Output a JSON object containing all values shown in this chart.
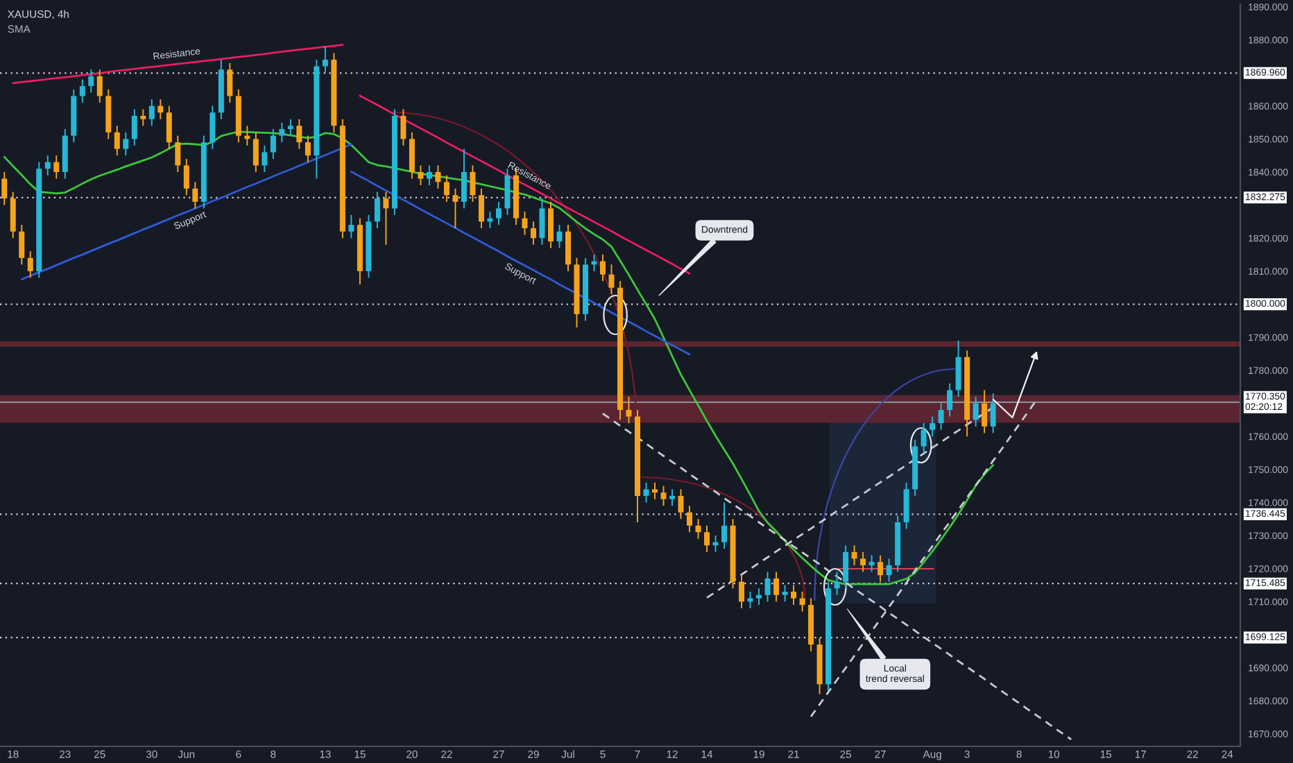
{
  "chart_data": {
    "type": "candlestick",
    "title": "XAUUSD, 4h",
    "subtitle": "SMA",
    "ylim": [
      1666.2,
      1890.8
    ],
    "categories": [
      null,
      "18",
      null,
      null,
      null,
      null,
      null,
      "23",
      null,
      null,
      null,
      "25",
      null,
      null,
      null,
      null,
      null,
      "30",
      null,
      null,
      null,
      "Jun",
      null,
      null,
      null,
      null,
      null,
      "6",
      null,
      null,
      null,
      "8",
      null,
      null,
      null,
      null,
      null,
      "13",
      null,
      null,
      null,
      "15",
      null,
      null,
      null,
      null,
      null,
      "20",
      null,
      null,
      null,
      "22",
      null,
      null,
      null,
      null,
      null,
      "27",
      null,
      null,
      null,
      "29",
      null,
      null,
      null,
      "Jul",
      null,
      null,
      null,
      "5",
      null,
      null,
      null,
      "7",
      null,
      null,
      null,
      "12",
      null,
      null,
      null,
      "14",
      null,
      null,
      null,
      null,
      null,
      "19",
      null,
      null,
      null,
      "21",
      null,
      null,
      null,
      null,
      null,
      "25",
      null,
      null,
      null,
      "27",
      null,
      null,
      null,
      null,
      null,
      "Aug",
      null,
      null,
      null,
      "3",
      null,
      null,
      null,
      null,
      null,
      "8",
      null,
      null,
      null,
      "10",
      null,
      null,
      null,
      null,
      null,
      "15",
      null,
      null,
      null,
      "17",
      null,
      null,
      null,
      null,
      null,
      "22",
      null,
      null,
      null,
      "24",
      null
    ],
    "yticks": [
      {
        "value": 1890,
        "label": "1890.000"
      },
      {
        "value": 1880,
        "label": "1880.000"
      },
      {
        "value": 1860,
        "label": "1860.000"
      },
      {
        "value": 1850,
        "label": "1850.000"
      },
      {
        "value": 1840,
        "label": "1840.000"
      },
      {
        "value": 1820,
        "label": "1820.000"
      },
      {
        "value": 1810,
        "label": "1810.000"
      },
      {
        "value": 1790,
        "label": "1790.000"
      },
      {
        "value": 1780,
        "label": "1780.000"
      },
      {
        "value": 1760,
        "label": "1760.000"
      },
      {
        "value": 1750,
        "label": "1750.000"
      },
      {
        "value": 1740,
        "label": "1740.000"
      },
      {
        "value": 1730,
        "label": "1730.000"
      },
      {
        "value": 1720,
        "label": "1720.000"
      },
      {
        "value": 1710,
        "label": "1710.000"
      },
      {
        "value": 1690,
        "label": "1690.000"
      },
      {
        "value": 1680,
        "label": "1680.000"
      },
      {
        "value": 1670,
        "label": "1670.000"
      }
    ],
    "ohlc": [
      [
        1838,
        1840,
        1830,
        1832
      ],
      [
        1832,
        1834,
        1820,
        1822
      ],
      [
        1822,
        1824,
        1812,
        1814
      ],
      [
        1814,
        1816,
        1808,
        1810
      ],
      [
        1810,
        1843,
        1808,
        1841
      ],
      [
        1841,
        1845,
        1839,
        1843
      ],
      [
        1843,
        1845,
        1838,
        1840
      ],
      [
        1840,
        1853,
        1838,
        1851
      ],
      [
        1851,
        1865,
        1849,
        1863
      ],
      [
        1863,
        1868,
        1861,
        1866
      ],
      [
        1866,
        1871,
        1864,
        1869
      ],
      [
        1869,
        1871,
        1861,
        1863
      ],
      [
        1863,
        1865,
        1850,
        1852
      ],
      [
        1852,
        1854,
        1845,
        1847
      ],
      [
        1847,
        1852,
        1845,
        1850
      ],
      [
        1850,
        1859,
        1848,
        1857
      ],
      [
        1857,
        1859,
        1854,
        1856
      ],
      [
        1856,
        1862,
        1854,
        1860
      ],
      [
        1860,
        1862,
        1856,
        1858
      ],
      [
        1858,
        1860,
        1847,
        1849
      ],
      [
        1849,
        1851,
        1840,
        1842
      ],
      [
        1842,
        1844,
        1833,
        1835
      ],
      [
        1835,
        1837,
        1829,
        1831
      ],
      [
        1831,
        1851,
        1829,
        1849
      ],
      [
        1849,
        1860,
        1847,
        1858
      ],
      [
        1858,
        1874,
        1856,
        1871
      ],
      [
        1871,
        1873,
        1861,
        1863
      ],
      [
        1863,
        1865,
        1849,
        1851
      ],
      [
        1851,
        1854,
        1848,
        1850
      ],
      [
        1850,
        1852,
        1840,
        1842
      ],
      [
        1842,
        1848,
        1840,
        1846
      ],
      [
        1846,
        1853,
        1844,
        1851
      ],
      [
        1851,
        1855,
        1849,
        1853
      ],
      [
        1853,
        1856,
        1851,
        1854
      ],
      [
        1854,
        1856,
        1847,
        1849
      ],
      [
        1849,
        1851,
        1843,
        1845
      ],
      [
        1845,
        1874,
        1838,
        1872
      ],
      [
        1872,
        1878,
        1870,
        1874
      ],
      [
        1874,
        1876,
        1852,
        1854
      ],
      [
        1854,
        1856,
        1820,
        1822
      ],
      [
        1822,
        1827,
        1820,
        1824
      ],
      [
        1824,
        1826,
        1806,
        1810
      ],
      [
        1810,
        1827,
        1808,
        1825
      ],
      [
        1825,
        1834,
        1823,
        1832
      ],
      [
        1832,
        1834,
        1818,
        1829
      ],
      [
        1829,
        1859,
        1827,
        1857
      ],
      [
        1857,
        1859,
        1848,
        1850
      ],
      [
        1850,
        1852,
        1838,
        1840
      ],
      [
        1840,
        1842,
        1836,
        1838
      ],
      [
        1838,
        1842,
        1836,
        1840
      ],
      [
        1840,
        1842,
        1835,
        1837
      ],
      [
        1837,
        1839,
        1831,
        1833
      ],
      [
        1833,
        1835,
        1823,
        1831
      ],
      [
        1831,
        1847,
        1829,
        1840
      ],
      [
        1840,
        1842,
        1831,
        1833
      ],
      [
        1833,
        1835,
        1823,
        1825
      ],
      [
        1825,
        1828,
        1823,
        1826
      ],
      [
        1826,
        1831,
        1824,
        1829
      ],
      [
        1829,
        1841,
        1827,
        1839
      ],
      [
        1839,
        1841,
        1824,
        1826
      ],
      [
        1826,
        1828,
        1821,
        1823
      ],
      [
        1823,
        1825,
        1818,
        1820
      ],
      [
        1820,
        1832,
        1818,
        1829
      ],
      [
        1829,
        1831,
        1817,
        1819
      ],
      [
        1819,
        1824,
        1817,
        1822
      ],
      [
        1822,
        1824,
        1810,
        1812
      ],
      [
        1812,
        1814,
        1793,
        1797
      ],
      [
        1797,
        1814,
        1795,
        1812
      ],
      [
        1812,
        1815,
        1810,
        1813
      ],
      [
        1813,
        1815,
        1807,
        1809
      ],
      [
        1809,
        1812,
        1803,
        1805
      ],
      [
        1805,
        1807,
        1765,
        1768
      ],
      [
        1768,
        1772,
        1764,
        1766
      ],
      [
        1766,
        1768,
        1734,
        1742
      ],
      [
        1742,
        1746,
        1740,
        1744
      ],
      [
        1744,
        1746,
        1741,
        1743
      ],
      [
        1743,
        1745,
        1739,
        1741
      ],
      [
        1741,
        1744,
        1739,
        1742
      ],
      [
        1742,
        1744,
        1735,
        1737
      ],
      [
        1737,
        1739,
        1731,
        1733
      ],
      [
        1733,
        1735,
        1729,
        1731
      ],
      [
        1731,
        1733,
        1725,
        1727
      ],
      [
        1727,
        1730,
        1725,
        1728
      ],
      [
        1728,
        1740,
        1726,
        1733
      ],
      [
        1733,
        1735,
        1714,
        1716
      ],
      [
        1716,
        1718,
        1708,
        1710
      ],
      [
        1710,
        1713,
        1708,
        1711
      ],
      [
        1711,
        1714,
        1709,
        1712
      ],
      [
        1712,
        1719,
        1710,
        1717
      ],
      [
        1717,
        1719,
        1710,
        1712
      ],
      [
        1712,
        1715,
        1710,
        1713
      ],
      [
        1713,
        1715,
        1709,
        1711
      ],
      [
        1711,
        1713,
        1707,
        1709
      ],
      [
        1709,
        1711,
        1695,
        1697
      ],
      [
        1697,
        1699,
        1682,
        1685
      ],
      [
        1685,
        1716,
        1683,
        1714
      ],
      [
        1714,
        1719,
        1712,
        1716
      ],
      [
        1716,
        1727,
        1714,
        1725
      ],
      [
        1725,
        1727,
        1721,
        1723
      ],
      [
        1723,
        1725,
        1719,
        1721
      ],
      [
        1721,
        1724,
        1719,
        1722
      ],
      [
        1722,
        1724,
        1716,
        1718
      ],
      [
        1718,
        1723,
        1716,
        1721
      ],
      [
        1721,
        1736,
        1719,
        1734
      ],
      [
        1734,
        1746,
        1732,
        1744
      ],
      [
        1744,
        1759,
        1742,
        1757
      ],
      [
        1757,
        1764,
        1755,
        1762
      ],
      [
        1762,
        1766,
        1760,
        1764
      ],
      [
        1764,
        1770,
        1762,
        1768
      ],
      [
        1768,
        1776,
        1766,
        1774
      ],
      [
        1774,
        1789,
        1772,
        1784
      ],
      [
        1784,
        1786,
        1760,
        1765
      ],
      [
        1765,
        1772,
        1763,
        1770
      ],
      [
        1770,
        1774,
        1761,
        1763
      ],
      [
        1763,
        1773,
        1761,
        1770
      ],
      null,
      null,
      null,
      null,
      null,
      null,
      null,
      null,
      null,
      null,
      null,
      null,
      null,
      null,
      null,
      null,
      null,
      null,
      null,
      null,
      null,
      null,
      null,
      null,
      null,
      null,
      null,
      null
    ],
    "colors": [
      "#f5a31c",
      "#f5a31c",
      "#f5a31c",
      "#f5a31c",
      "#26b8d6",
      "#26b8d6",
      "#f5a31c",
      "#26b8d6",
      "#26b8d6",
      "#26b8d6",
      "#26b8d6",
      "#f5a31c",
      "#f5a31c",
      "#f5a31c",
      "#26b8d6",
      "#26b8d6",
      "#f5a31c",
      "#26b8d6",
      "#f5a31c",
      "#f5a31c",
      "#f5a31c",
      "#f5a31c",
      "#f5a31c",
      "#26b8d6",
      "#26b8d6",
      "#26b8d6",
      "#f5a31c",
      "#f5a31c",
      "#f5a31c",
      "#f5a31c",
      "#26b8d6",
      "#26b8d6",
      "#26b8d6",
      "#26b8d6",
      "#f5a31c",
      "#f5a31c",
      "#26b8d6",
      "#26b8d6",
      "#f5a31c",
      "#f5a31c",
      "#26b8d6",
      "#f5a31c",
      "#26b8d6",
      "#26b8d6",
      "#f5a31c",
      "#26b8d6",
      "#f5a31c",
      "#f5a31c",
      "#f5a31c",
      "#26b8d6",
      "#f5a31c",
      "#f5a31c",
      "#f5a31c",
      "#26b8d6",
      "#f5a31c",
      "#f5a31c",
      "#26b8d6",
      "#26b8d6",
      "#26b8d6",
      "#f5a31c",
      "#f5a31c",
      "#f5a31c",
      "#26b8d6",
      "#f5a31c",
      "#26b8d6",
      "#f5a31c",
      "#f5a31c",
      "#26b8d6",
      "#26b8d6",
      "#f5a31c",
      "#f5a31c",
      "#f5a31c",
      "#f5a31c",
      "#f5a31c",
      "#26b8d6",
      "#f5a31c",
      "#f5a31c",
      "#26b8d6",
      "#f5a31c",
      "#f5a31c",
      "#f5a31c",
      "#f5a31c",
      "#26b8d6",
      "#26b8d6",
      "#f5a31c",
      "#f5a31c",
      "#26b8d6",
      "#26b8d6",
      "#26b8d6",
      "#f5a31c",
      "#26b8d6",
      "#f5a31c",
      "#f5a31c",
      "#f5a31c",
      "#f5a31c",
      "#26b8d6",
      "#26b8d6",
      "#26b8d6",
      "#f5a31c",
      "#f5a31c",
      "#26b8d6",
      "#f5a31c",
      "#26b8d6",
      "#26b8d6",
      "#26b8d6",
      "#26b8d6",
      "#26b8d6",
      "#26b8d6",
      "#26b8d6",
      "#26b8d6",
      "#26b8d6",
      "#f5a31c",
      "#26b8d6",
      "#f5a31c",
      "#26b8d6",
      null,
      null,
      null,
      null,
      null,
      null,
      null,
      null,
      null,
      null,
      null,
      null,
      null,
      null,
      null,
      null,
      null,
      null,
      null,
      null,
      null,
      null,
      null,
      null,
      null,
      null,
      null,
      null
    ],
    "series": [
      {
        "type": "line",
        "color": "#3cc83c",
        "values": [
          1844.6,
          1841.8,
          1839.1,
          1836.3,
          1834.0,
          1833.8,
          1833.5,
          1833.8,
          1835.1,
          1836.5,
          1837.8,
          1838.9,
          1839.8,
          1840.7,
          1841.7,
          1842.6,
          1843.5,
          1844.4,
          1845.7,
          1847.1,
          1848.5,
          1848.6,
          1848.4,
          1848.1,
          1849.1,
          1850.9,
          1851.6,
          1852.2,
          1852.1,
          1852.0,
          1851.9,
          1851.8,
          1851.5,
          1851.1,
          1850.7,
          1850.3,
          1850.7,
          1851.8,
          1851.5,
          1850.2,
          1848.2,
          1845.6,
          1843.0,
          1842.1,
          1841.7,
          1841.2,
          1840.6,
          1840.1,
          1839.5,
          1839.1,
          1838.7,
          1838.3,
          1837.9,
          1837.5,
          1836.9,
          1836.3,
          1835.7,
          1835.1,
          1834.5,
          1833.8,
          1833.2,
          1832.3,
          1831.4,
          1830.5,
          1829.1,
          1827.0,
          1824.9,
          1822.9,
          1821.2,
          1819.6,
          1817.4,
          1813.2,
          1808.9,
          1804.4,
          1800.0,
          1795.5,
          1789.9,
          1784.3,
          1778.7,
          1774.0,
          1769.4,
          1764.7,
          1760.2,
          1756.0,
          1751.8,
          1747.1,
          1742.3,
          1737.4,
          1733.9,
          1731.2,
          1728.4,
          1725.7,
          1723.2,
          1720.8,
          1718.5,
          1716.5,
          1715.8,
          1715.3,
          1715.3,
          1715.3,
          1715.3,
          1715.3,
          1715.3,
          1716.1,
          1716.9,
          1718.7,
          1721.9,
          1725.2,
          1728.8,
          1732.5,
          1736.4,
          1740.7,
          1745.1,
          1748.5,
          1751.3,
          null,
          null,
          null,
          null,
          null,
          null,
          null,
          null,
          null,
          null,
          null,
          null,
          null,
          null,
          null,
          null,
          null,
          null,
          null,
          null,
          null,
          null,
          null,
          null,
          null,
          null,
          null,
          null
        ]
      },
      {
        "type": "line",
        "name": "Resistance",
        "color": "#e91e63",
        "values": [
          null,
          1866.9,
          1867.2,
          1867.5,
          1867.8,
          1868.1,
          1868.4,
          1868.7,
          1869.0,
          1869.3,
          1869.6,
          1869.9,
          1870.3,
          1870.6,
          1870.9,
          1871.2,
          1871.5,
          1871.8,
          1872.1,
          1872.4,
          1872.7,
          1873.0,
          1873.3,
          1873.6,
          1873.9,
          1874.2,
          1874.5,
          1874.8,
          1875.1,
          1875.4,
          1875.7,
          1876.1,
          1876.4,
          1876.7,
          1877.0,
          1877.3,
          1877.6,
          1877.9,
          1878.2,
          1878.5,
          null,
          null,
          null,
          null,
          null,
          null,
          null,
          null,
          null,
          null,
          null,
          null,
          null,
          null,
          null,
          null,
          null,
          null,
          null,
          null,
          null,
          null,
          null,
          null,
          null,
          null,
          null,
          null,
          null,
          null,
          null,
          null,
          null,
          null,
          null,
          null,
          null,
          null,
          null,
          null,
          null,
          null,
          null,
          null,
          null,
          null,
          null,
          null,
          null,
          null,
          null,
          null,
          null,
          null,
          null,
          null,
          null,
          null,
          null,
          null,
          null,
          null,
          null,
          null,
          null,
          null,
          null,
          null,
          null,
          null,
          null,
          null,
          null,
          null,
          null,
          null,
          null,
          null,
          null,
          null,
          null,
          null,
          null,
          null,
          null,
          null,
          null,
          null,
          null,
          null,
          null,
          null,
          null,
          null,
          null,
          null,
          null,
          null,
          null,
          null,
          null,
          null,
          null
        ]
      },
      {
        "type": "line",
        "name": "Support",
        "color": "#2f5bd6",
        "values": [
          null,
          null,
          1807.5,
          1808.6,
          1809.7,
          1810.7,
          1811.8,
          1812.9,
          1814.0,
          1815.0,
          1816.1,
          1817.2,
          1818.3,
          1819.3,
          1820.4,
          1821.5,
          1822.6,
          1823.6,
          1824.7,
          1825.8,
          1826.9,
          1827.9,
          1829.0,
          1830.1,
          1831.2,
          1832.2,
          1833.3,
          1834.4,
          1835.5,
          1836.5,
          1837.6,
          1838.7,
          1839.8,
          1840.8,
          1841.9,
          1843.0,
          1844.1,
          1845.1,
          1846.2,
          1847.3,
          1848.4,
          null,
          null,
          null,
          null,
          null,
          null,
          null,
          null,
          null,
          null,
          null,
          null,
          null,
          null,
          null,
          null,
          null,
          null,
          null,
          null,
          null,
          null,
          null,
          null,
          null,
          null,
          null,
          null,
          null,
          null,
          null,
          null,
          null,
          null,
          null,
          null,
          null,
          null,
          null,
          null,
          null,
          null,
          null,
          null,
          null,
          null,
          null,
          null,
          null,
          null,
          null,
          null,
          null,
          null,
          null,
          null,
          null,
          null,
          null,
          null,
          null,
          null,
          null,
          null,
          null,
          null,
          null,
          null,
          null,
          null,
          null,
          null,
          null,
          null,
          null,
          null,
          null,
          null,
          null,
          null,
          null,
          null,
          null,
          null,
          null,
          null,
          null,
          null,
          null,
          null,
          null,
          null,
          null,
          null,
          null,
          null,
          null,
          null,
          null,
          null,
          null,
          null
        ]
      },
      {
        "type": "line",
        "name": "Resistance",
        "color": "#e91e63",
        "values": [
          null,
          null,
          null,
          null,
          null,
          null,
          null,
          null,
          null,
          null,
          null,
          null,
          null,
          null,
          null,
          null,
          null,
          null,
          null,
          null,
          null,
          null,
          null,
          null,
          null,
          null,
          null,
          null,
          null,
          null,
          null,
          null,
          null,
          null,
          null,
          null,
          null,
          null,
          null,
          null,
          null,
          1863.1,
          1861.7,
          1860.3,
          1858.9,
          1857.4,
          1856.0,
          1854.6,
          1853.2,
          1851.8,
          1850.4,
          1848.9,
          1847.5,
          1846.1,
          1844.7,
          1843.3,
          1841.9,
          1840.5,
          1839.0,
          1837.6,
          1836.2,
          1834.8,
          1833.4,
          1832.0,
          1830.5,
          1829.1,
          1827.7,
          1826.3,
          1824.9,
          1823.5,
          1822.1,
          1820.6,
          1819.2,
          1817.8,
          1816.4,
          1815.0,
          1813.6,
          1812.2,
          1810.7,
          1809.3,
          null,
          null,
          null,
          null,
          null,
          null,
          null,
          null,
          null,
          null,
          null,
          null,
          null,
          null,
          null,
          null,
          null,
          null,
          null,
          null,
          null,
          null,
          null,
          null,
          null,
          null,
          null,
          null,
          null,
          null,
          null,
          null,
          null,
          null,
          null,
          null,
          null,
          null,
          null,
          null,
          null,
          null,
          null,
          null,
          null,
          null,
          null,
          null,
          null,
          null,
          null,
          null,
          null,
          null,
          null,
          null,
          null,
          null,
          null,
          null,
          null,
          null,
          null
        ]
      },
      {
        "type": "line",
        "name": "Support",
        "color": "#2f5bd6",
        "values": [
          null,
          null,
          null,
          null,
          null,
          null,
          null,
          null,
          null,
          null,
          null,
          null,
          null,
          null,
          null,
          null,
          null,
          null,
          null,
          null,
          null,
          null,
          null,
          null,
          null,
          null,
          null,
          null,
          null,
          null,
          null,
          null,
          null,
          null,
          null,
          null,
          null,
          null,
          null,
          null,
          1840.1,
          1838.7,
          1837.3,
          1835.8,
          1834.4,
          1833.0,
          1831.6,
          1830.2,
          1828.7,
          1827.3,
          1825.9,
          1824.5,
          1823.1,
          1821.6,
          1820.2,
          1818.8,
          1817.4,
          1816.0,
          1814.5,
          1813.1,
          1811.7,
          1810.3,
          1808.9,
          1807.5,
          1806.0,
          1804.6,
          1803.2,
          1801.8,
          1800.4,
          1798.9,
          1797.5,
          1796.1,
          1794.7,
          1793.3,
          1791.8,
          1790.4,
          1789.0,
          1787.6,
          1786.2,
          1784.8,
          null,
          null,
          null,
          null,
          null,
          null,
          null,
          null,
          null,
          null,
          null,
          null,
          null,
          null,
          null,
          null,
          null,
          null,
          null,
          null,
          null,
          null,
          null,
          null,
          null,
          null,
          null,
          null,
          null,
          null,
          null,
          null,
          null,
          null,
          null,
          null,
          null,
          null,
          null,
          null,
          null,
          null,
          null,
          null,
          null,
          null,
          null,
          null,
          null,
          null,
          null,
          null,
          null,
          null,
          null,
          null,
          null,
          null,
          null,
          null,
          null,
          null,
          null
        ]
      },
      {
        "type": "line",
        "color": "#c8cbd3",
        "line_style": "dashed",
        "values": [
          null,
          null,
          null,
          null,
          null,
          null,
          null,
          null,
          null,
          null,
          null,
          null,
          null,
          null,
          null,
          null,
          null,
          null,
          null,
          null,
          null,
          null,
          null,
          null,
          null,
          null,
          null,
          null,
          null,
          null,
          null,
          null,
          null,
          null,
          null,
          null,
          null,
          null,
          null,
          null,
          null,
          null,
          null,
          null,
          null,
          null,
          null,
          null,
          null,
          null,
          null,
          null,
          null,
          null,
          null,
          null,
          null,
          null,
          null,
          null,
          null,
          null,
          null,
          null,
          null,
          null,
          null,
          null,
          null,
          1766.9,
          1765.1,
          1763.2,
          1761.4,
          1759.6,
          1757.8,
          1755.9,
          1754.1,
          1752.3,
          1750.5,
          1748.6,
          1746.8,
          1745.0,
          1743.2,
          1741.3,
          1739.5,
          1737.7,
          1735.9,
          1734.0,
          1732.2,
          1730.4,
          1728.6,
          1726.7,
          1724.9,
          1723.1,
          1721.3,
          1719.4,
          1717.6,
          1715.8,
          1713.9,
          1712.1,
          1710.3,
          1708.5,
          1706.6,
          1704.8,
          1703.0,
          1701.2,
          1699.3,
          1697.5,
          1695.7,
          1693.9,
          1692.0,
          1690.2,
          1688.4,
          1686.6,
          1684.7,
          1682.9,
          1681.1,
          1679.3,
          1677.4,
          1675.6,
          1673.8,
          1671.9,
          1670.1,
          1668.3,
          null,
          null,
          null,
          null,
          null,
          null,
          null,
          null,
          null,
          null,
          null,
          null,
          null,
          null,
          null,
          null,
          null,
          null,
          null
        ]
      },
      {
        "type": "line",
        "color": "#c8cbd3",
        "line_style": "dashed",
        "values": [
          null,
          null,
          null,
          null,
          null,
          null,
          null,
          null,
          null,
          null,
          null,
          null,
          null,
          null,
          null,
          null,
          null,
          null,
          null,
          null,
          null,
          null,
          null,
          null,
          null,
          null,
          null,
          null,
          null,
          null,
          null,
          null,
          null,
          null,
          null,
          null,
          null,
          null,
          null,
          null,
          null,
          null,
          null,
          null,
          null,
          null,
          null,
          null,
          null,
          null,
          null,
          null,
          null,
          null,
          null,
          null,
          null,
          null,
          null,
          null,
          null,
          null,
          null,
          null,
          null,
          null,
          null,
          null,
          null,
          null,
          null,
          null,
          null,
          null,
          null,
          null,
          null,
          null,
          null,
          null,
          null,
          1711.2,
          1712.9,
          1714.7,
          1716.4,
          1718.2,
          1719.9,
          1721.7,
          1723.4,
          1725.2,
          1726.9,
          1728.7,
          1730.4,
          1732.1,
          1733.9,
          1735.6,
          1737.4,
          1739.1,
          1740.9,
          1742.6,
          1744.4,
          1746.1,
          1747.8,
          1749.6,
          1751.3,
          1753.1,
          1754.8,
          1756.6,
          1758.3,
          1760.1,
          1761.8,
          1763.6,
          1765.3,
          1767.0,
          1768.8,
          null,
          null,
          null,
          null,
          null,
          null,
          null,
          null,
          null,
          null,
          null,
          null,
          null,
          null,
          null,
          null,
          null,
          null,
          null,
          null,
          null,
          null,
          null,
          null,
          null,
          null,
          null,
          null
        ]
      },
      {
        "type": "line",
        "color": "#c8cbd3",
        "line_style": "dashed",
        "values": [
          null,
          null,
          null,
          null,
          null,
          null,
          null,
          null,
          null,
          null,
          null,
          null,
          null,
          null,
          null,
          null,
          null,
          null,
          null,
          null,
          null,
          null,
          null,
          null,
          null,
          null,
          null,
          null,
          null,
          null,
          null,
          null,
          null,
          null,
          null,
          null,
          null,
          null,
          null,
          null,
          null,
          null,
          null,
          null,
          null,
          null,
          null,
          null,
          null,
          null,
          null,
          null,
          null,
          null,
          null,
          null,
          null,
          null,
          null,
          null,
          null,
          null,
          null,
          null,
          null,
          null,
          null,
          null,
          null,
          null,
          null,
          null,
          null,
          null,
          null,
          null,
          null,
          null,
          null,
          null,
          null,
          null,
          null,
          null,
          null,
          null,
          null,
          null,
          null,
          null,
          null,
          null,
          null,
          1675.2,
          1678.9,
          1682.6,
          1686.3,
          1689.9,
          1693.6,
          1697.3,
          1701.0,
          1704.7,
          1708.4,
          1712.0,
          1715.7,
          1719.4,
          1723.1,
          1726.8,
          1730.5,
          1734.1,
          1737.8,
          1741.5,
          1745.2,
          1748.9,
          1752.6,
          1756.2,
          1759.9,
          1763.6,
          1767.3,
          1771.0,
          null,
          null,
          null,
          null,
          null,
          null,
          null,
          null,
          null,
          null,
          null,
          null,
          null,
          null,
          null,
          null,
          null,
          null,
          null,
          null,
          null,
          null,
          null
        ]
      }
    ],
    "bands": [
      {
        "axis": "y",
        "from": 1787.1,
        "to": 1788.8,
        "color": "#5a2531"
      },
      {
        "axis": "y",
        "from": 1764.1,
        "to": 1772.5,
        "color": "#5a2531"
      }
    ],
    "ref_lines": [
      {
        "axis": "y",
        "value": 1869.96,
        "label": "1869.960",
        "color": "#d1d4dc",
        "line_style": "dotted"
      },
      {
        "axis": "y",
        "value": 1832.275,
        "label": "1832.275",
        "color": "#d1d4dc",
        "line_style": "dotted"
      },
      {
        "axis": "y",
        "value": 1800.0,
        "label": "1800.000",
        "color": "#d1d4dc",
        "line_style": "dotted"
      },
      {
        "axis": "y",
        "value": 1770.35,
        "label": "1770.350\n02:20:12",
        "color": "#8a8d96",
        "line_style": "solid"
      },
      {
        "axis": "y",
        "value": 1736.445,
        "label": "1736.445",
        "color": "#d1d4dc",
        "line_style": "dotted"
      },
      {
        "axis": "y",
        "value": 1715.485,
        "label": "1715.485",
        "color": "#d1d4dc",
        "line_style": "dotted"
      },
      {
        "axis": "y",
        "value": 1699.125,
        "label": "1699.125",
        "color": "#d1d4dc",
        "line_style": "dotted"
      }
    ],
    "annotations": [
      "Downtrend",
      "Local\ntrend reversal"
    ]
  }
}
